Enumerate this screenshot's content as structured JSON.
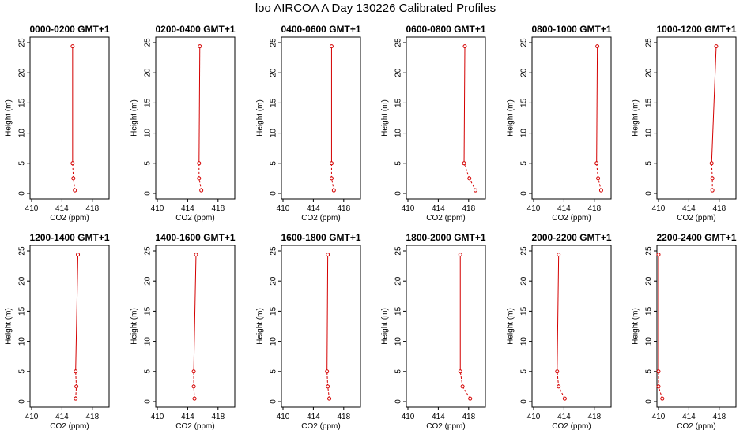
{
  "page_title": "loo AIRCOA A  Day 130226  Calibrated Profiles",
  "colors": {
    "profile_line": "#d40000",
    "axis": "#000000",
    "background": "#ffffff"
  },
  "chart_data": [
    {
      "type": "line",
      "title": "0000-0200 GMT+1",
      "xlabel": "CO2 (ppm)",
      "ylabel": "Height (m)",
      "xlim": [
        410,
        420
      ],
      "ylim": [
        0,
        25
      ],
      "xticks": [
        410,
        414,
        418
      ],
      "yticks": [
        0,
        5,
        10,
        15,
        20,
        25
      ],
      "grid": false,
      "series": [
        {
          "x": [
            415.7,
            415.5,
            415.4,
            415.4
          ],
          "y": [
            0.5,
            2.5,
            5,
            24.4
          ]
        }
      ]
    },
    {
      "type": "line",
      "title": "0200-0400 GMT+1",
      "xlabel": "CO2 (ppm)",
      "ylabel": "Height (m)",
      "xlim": [
        410,
        420
      ],
      "ylim": [
        0,
        25
      ],
      "xticks": [
        410,
        414,
        418
      ],
      "yticks": [
        0,
        5,
        10,
        15,
        20,
        25
      ],
      "grid": false,
      "series": [
        {
          "x": [
            415.8,
            415.5,
            415.5,
            415.6
          ],
          "y": [
            0.5,
            2.5,
            5,
            24.4
          ]
        }
      ]
    },
    {
      "type": "line",
      "title": "0400-0600 GMT+1",
      "xlabel": "CO2 (ppm)",
      "ylabel": "Height (m)",
      "xlim": [
        410,
        420
      ],
      "ylim": [
        0,
        25
      ],
      "xticks": [
        410,
        414,
        418
      ],
      "yticks": [
        0,
        5,
        10,
        15,
        20,
        25
      ],
      "grid": false,
      "series": [
        {
          "x": [
            416.7,
            416.4,
            416.4,
            416.4
          ],
          "y": [
            0.5,
            2.5,
            5,
            24.4
          ]
        }
      ]
    },
    {
      "type": "line",
      "title": "0600-0800 GMT+1",
      "xlabel": "CO2 (ppm)",
      "ylabel": "Height (m)",
      "xlim": [
        410,
        420
      ],
      "ylim": [
        0,
        25
      ],
      "xticks": [
        410,
        414,
        418
      ],
      "yticks": [
        0,
        5,
        10,
        15,
        20,
        25
      ],
      "grid": false,
      "series": [
        {
          "x": [
            418.9,
            418.1,
            417.4,
            417.5
          ],
          "y": [
            0.5,
            2.5,
            5,
            24.4
          ]
        }
      ]
    },
    {
      "type": "line",
      "title": "0800-1000 GMT+1",
      "xlabel": "CO2 (ppm)",
      "ylabel": "Height (m)",
      "xlim": [
        410,
        420
      ],
      "ylim": [
        0,
        25
      ],
      "xticks": [
        410,
        414,
        418
      ],
      "yticks": [
        0,
        5,
        10,
        15,
        20,
        25
      ],
      "grid": false,
      "series": [
        {
          "x": [
            418.9,
            418.5,
            418.3,
            418.4
          ],
          "y": [
            0.5,
            2.5,
            5,
            24.4
          ]
        }
      ]
    },
    {
      "type": "line",
      "title": "1000-1200 GMT+1",
      "xlabel": "CO2 (ppm)",
      "ylabel": "Height (m)",
      "xlim": [
        410,
        420
      ],
      "ylim": [
        0,
        25
      ],
      "xticks": [
        410,
        414,
        418
      ],
      "yticks": [
        0,
        5,
        10,
        15,
        20,
        25
      ],
      "grid": false,
      "series": [
        {
          "x": [
            417.1,
            417.1,
            417.0,
            417.6
          ],
          "y": [
            0.5,
            2.5,
            5,
            24.4
          ]
        }
      ]
    },
    {
      "type": "line",
      "title": "1200-1400 GMT+1",
      "xlabel": "CO2 (ppm)",
      "ylabel": "Height (m)",
      "xlim": [
        410,
        420
      ],
      "ylim": [
        0,
        25
      ],
      "xticks": [
        410,
        414,
        418
      ],
      "yticks": [
        0,
        5,
        10,
        15,
        20,
        25
      ],
      "grid": false,
      "series": [
        {
          "x": [
            415.8,
            415.9,
            415.8,
            416.1
          ],
          "y": [
            0.5,
            2.5,
            5,
            24.4
          ]
        }
      ]
    },
    {
      "type": "line",
      "title": "1400-1600 GMT+1",
      "xlabel": "CO2 (ppm)",
      "ylabel": "Height (m)",
      "xlim": [
        410,
        420
      ],
      "ylim": [
        0,
        25
      ],
      "xticks": [
        410,
        414,
        418
      ],
      "yticks": [
        0,
        5,
        10,
        15,
        20,
        25
      ],
      "grid": false,
      "series": [
        {
          "x": [
            414.9,
            414.8,
            414.8,
            415.1
          ],
          "y": [
            0.5,
            2.5,
            5,
            24.4
          ]
        }
      ]
    },
    {
      "type": "line",
      "title": "1600-1800 GMT+1",
      "xlabel": "CO2 (ppm)",
      "ylabel": "Height (m)",
      "xlim": [
        410,
        420
      ],
      "ylim": [
        0,
        25
      ],
      "xticks": [
        410,
        414,
        418
      ],
      "yticks": [
        0,
        5,
        10,
        15,
        20,
        25
      ],
      "grid": false,
      "series": [
        {
          "x": [
            416.1,
            415.9,
            415.8,
            415.9
          ],
          "y": [
            0.5,
            2.5,
            5,
            24.4
          ]
        }
      ]
    },
    {
      "type": "line",
      "title": "1800-2000 GMT+1",
      "xlabel": "CO2 (ppm)",
      "ylabel": "Height (m)",
      "xlim": [
        410,
        420
      ],
      "ylim": [
        0,
        25
      ],
      "xticks": [
        410,
        414,
        418
      ],
      "yticks": [
        0,
        5,
        10,
        15,
        20,
        25
      ],
      "grid": false,
      "series": [
        {
          "x": [
            418.2,
            417.2,
            416.9,
            416.9
          ],
          "y": [
            0.5,
            2.5,
            5,
            24.4
          ]
        }
      ]
    },
    {
      "type": "line",
      "title": "2000-2200 GMT+1",
      "xlabel": "CO2 (ppm)",
      "ylabel": "Height (m)",
      "xlim": [
        410,
        420
      ],
      "ylim": [
        0,
        25
      ],
      "xticks": [
        410,
        414,
        418
      ],
      "yticks": [
        0,
        5,
        10,
        15,
        20,
        25
      ],
      "grid": false,
      "series": [
        {
          "x": [
            414.1,
            413.3,
            413.1,
            413.3
          ],
          "y": [
            0.5,
            2.5,
            5,
            24.4
          ]
        }
      ]
    },
    {
      "type": "line",
      "title": "2200-2400 GMT+1",
      "xlabel": "CO2 (ppm)",
      "ylabel": "Height (m)",
      "xlim": [
        410,
        420
      ],
      "ylim": [
        0,
        25
      ],
      "xticks": [
        410,
        414,
        418
      ],
      "yticks": [
        0,
        5,
        10,
        15,
        20,
        25
      ],
      "grid": false,
      "series": [
        {
          "x": [
            410.5,
            410.0,
            410.0,
            410.0
          ],
          "y": [
            0.5,
            2.5,
            5,
            24.4
          ]
        }
      ]
    }
  ]
}
